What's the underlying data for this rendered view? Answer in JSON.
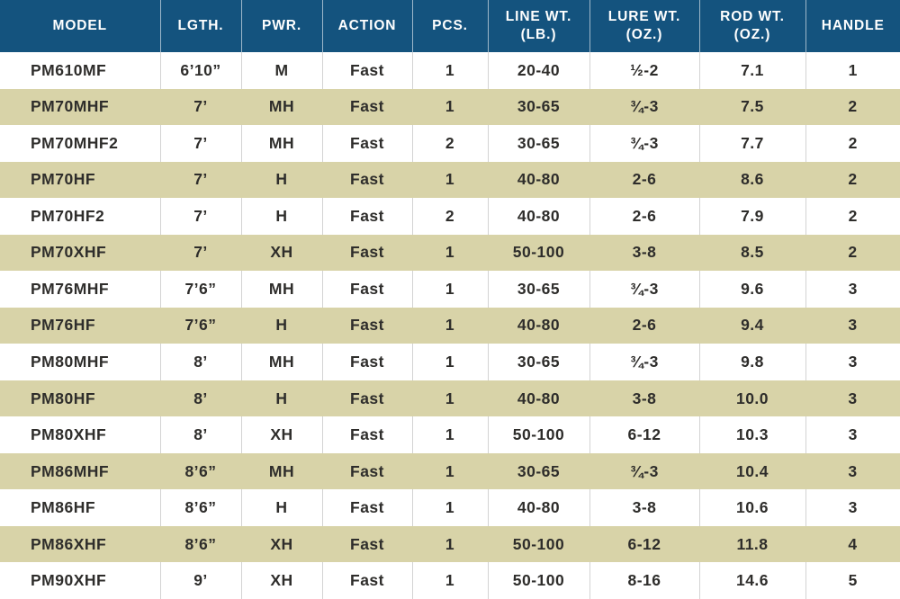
{
  "colors": {
    "header_bg": "#14537E",
    "header_text": "#FFFFFF",
    "header_divider": "#9DB7C9",
    "row_bg": "#FFFFFF",
    "row_alt_bg": "#D8D3A8",
    "cell_text": "#2E2D2B",
    "divider": "#D3D3D3"
  },
  "chart_data": {
    "type": "table",
    "columns": [
      "MODEL",
      "LGTH.",
      "PWR.",
      "ACTION",
      "PCS.",
      "LINE WT.\n(LB.)",
      "LURE WT.\n(OZ.)",
      "ROD WT.\n(OZ.)",
      "HANDLE"
    ],
    "rows": [
      [
        "PM610MF",
        "6’10”",
        "M",
        "Fast",
        "1",
        "20-40",
        "½-2",
        "7.1",
        "1"
      ],
      [
        "PM70MHF",
        "7’",
        "MH",
        "Fast",
        "1",
        "30-65",
        "¾-3",
        "7.5",
        "2"
      ],
      [
        "PM70MHF2",
        "7’",
        "MH",
        "Fast",
        "2",
        "30-65",
        "¾-3",
        "7.7",
        "2"
      ],
      [
        "PM70HF",
        "7’",
        "H",
        "Fast",
        "1",
        "40-80",
        "2-6",
        "8.6",
        "2"
      ],
      [
        "PM70HF2",
        "7’",
        "H",
        "Fast",
        "2",
        "40-80",
        "2-6",
        "7.9",
        "2"
      ],
      [
        "PM70XHF",
        "7’",
        "XH",
        "Fast",
        "1",
        "50-100",
        "3-8",
        "8.5",
        "2"
      ],
      [
        "PM76MHF",
        "7’6”",
        "MH",
        "Fast",
        "1",
        "30-65",
        "¾-3",
        "9.6",
        "3"
      ],
      [
        "PM76HF",
        "7’6”",
        "H",
        "Fast",
        "1",
        "40-80",
        "2-6",
        "9.4",
        "3"
      ],
      [
        "PM80MHF",
        "8’",
        "MH",
        "Fast",
        "1",
        "30-65",
        "¾-3",
        "9.8",
        "3"
      ],
      [
        "PM80HF",
        "8’",
        "H",
        "Fast",
        "1",
        "40-80",
        "3-8",
        "10.0",
        "3"
      ],
      [
        "PM80XHF",
        "8’",
        "XH",
        "Fast",
        "1",
        "50-100",
        "6-12",
        "10.3",
        "3"
      ],
      [
        "PM86MHF",
        "8’6”",
        "MH",
        "Fast",
        "1",
        "30-65",
        "¾-3",
        "10.4",
        "3"
      ],
      [
        "PM86HF",
        "8’6”",
        "H",
        "Fast",
        "1",
        "40-80",
        "3-8",
        "10.6",
        "3"
      ],
      [
        "PM86XHF",
        "8’6”",
        "XH",
        "Fast",
        "1",
        "50-100",
        "6-12",
        "11.8",
        "4"
      ],
      [
        "PM90XHF",
        "9’",
        "XH",
        "Fast",
        "1",
        "50-100",
        "8-16",
        "14.6",
        "5"
      ]
    ]
  }
}
